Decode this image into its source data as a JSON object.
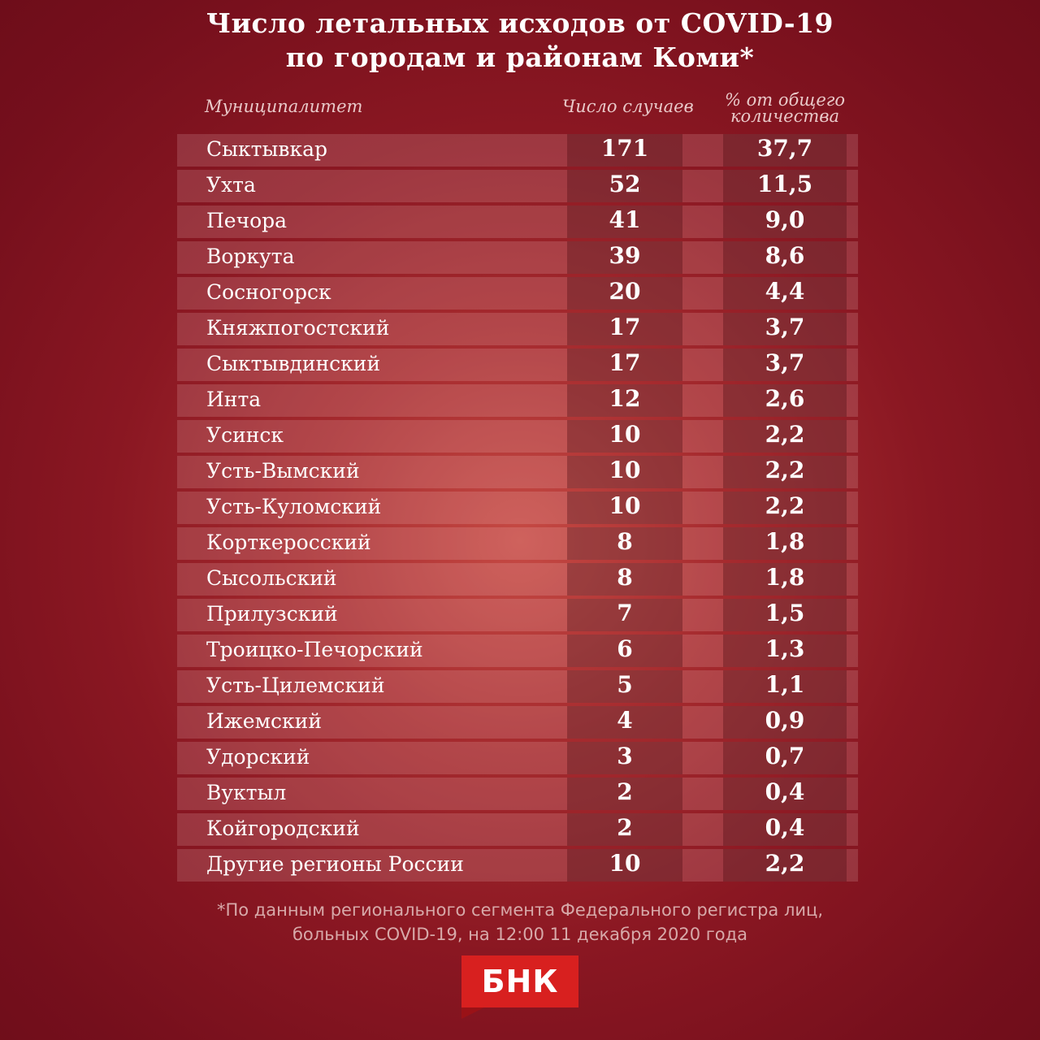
{
  "title_line1": "Число летальных исходов от COVID-19",
  "title_line2": "по городам и районам Коми*",
  "headers": {
    "name": "Муниципалитет",
    "count": "Число случаев",
    "pct_line1": "% от общего",
    "pct_line2": "количества"
  },
  "chart_data": {
    "type": "table",
    "columns": [
      "Муниципалитет",
      "Число случаев",
      "% от общего количества"
    ],
    "rows": [
      {
        "name": "Сыктывкар",
        "count": "171",
        "pct": "37,7"
      },
      {
        "name": "Ухта",
        "count": "52",
        "pct": "11,5"
      },
      {
        "name": "Печора",
        "count": "41",
        "pct": "9,0"
      },
      {
        "name": "Воркута",
        "count": "39",
        "pct": "8,6"
      },
      {
        "name": "Сосногорск",
        "count": "20",
        "pct": "4,4"
      },
      {
        "name": "Княжпогостский",
        "count": "17",
        "pct": "3,7"
      },
      {
        "name": "Сыктывдинский",
        "count": "17",
        "pct": "3,7"
      },
      {
        "name": "Инта",
        "count": "12",
        "pct": "2,6"
      },
      {
        "name": "Усинск",
        "count": "10",
        "pct": "2,2"
      },
      {
        "name": "Усть-Вымский",
        "count": "10",
        "pct": "2,2"
      },
      {
        "name": "Усть-Куломский",
        "count": "10",
        "pct": "2,2"
      },
      {
        "name": "Корткеросский",
        "count": "8",
        "pct": "1,8"
      },
      {
        "name": "Сысольский",
        "count": "8",
        "pct": "1,8"
      },
      {
        "name": "Прилузский",
        "count": "7",
        "pct": "1,5"
      },
      {
        "name": "Троицко-Печорский",
        "count": "6",
        "pct": "1,3"
      },
      {
        "name": "Усть-Цилемский",
        "count": "5",
        "pct": "1,1"
      },
      {
        "name": "Ижемский",
        "count": "4",
        "pct": "0,9"
      },
      {
        "name": "Удорский",
        "count": "3",
        "pct": "0,7"
      },
      {
        "name": "Вуктыл",
        "count": "2",
        "pct": "0,4"
      },
      {
        "name": "Койгородский",
        "count": "2",
        "pct": "0,4"
      },
      {
        "name": "Другие регионы России",
        "count": "10",
        "pct": "2,2"
      }
    ]
  },
  "footnote_line1": "*По данным регионального сегмента Федерального регистра лиц,",
  "footnote_line2": "больных  COVID-19, на 12:00 11 декабря 2020 года",
  "logo_text": "БНК",
  "colors": {
    "background": "#8a1722",
    "logo": "#d8201f"
  }
}
